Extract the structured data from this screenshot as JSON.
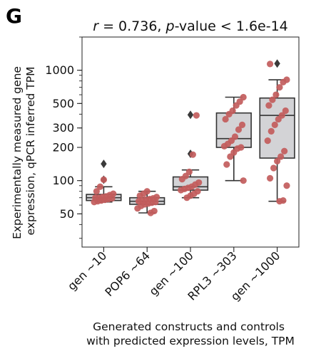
{
  "panel_label": "G",
  "chart_data": {
    "type": "box",
    "title_parts": [
      "r",
      " = 0.736, ",
      "p",
      "-value < 1.6e-14"
    ],
    "xlabel_lines": [
      "Generated constructs and controls",
      "with predicted expression levels, TPM"
    ],
    "ylabel_lines": [
      "Experimentally measured gene",
      "expression, qPCR inferred TPM"
    ],
    "yscale": "log",
    "ylim": [
      25,
      2000
    ],
    "yticks": [
      {
        "value": 50,
        "label": "50"
      },
      {
        "value": 100,
        "label": "100"
      },
      {
        "value": 200,
        "label": "200"
      },
      {
        "value": 300,
        "label": "300"
      },
      {
        "value": 500,
        "label": "500"
      },
      {
        "value": 1000,
        "label": "1000"
      }
    ],
    "categories": [
      "gen ~10",
      "POP6 ~64",
      "gen ~100",
      "RPL3 ~303",
      "gen ~1000"
    ],
    "boxes": [
      {
        "category": "gen ~10",
        "whisker_low": 64,
        "q1": 66,
        "median": 70,
        "q3": 75,
        "whisker_high": 88,
        "outliers": [
          102,
          142
        ],
        "points": [
          64,
          65,
          66,
          67,
          68,
          69,
          70,
          70,
          71,
          72,
          74,
          76,
          80,
          88,
          102
        ]
      },
      {
        "category": "POP6 ~64",
        "whisker_low": 51,
        "q1": 61,
        "median": 65,
        "q3": 70,
        "whisker_high": 80,
        "outliers": [],
        "points": [
          51,
          53,
          56,
          59,
          61,
          62,
          63,
          64,
          65,
          66,
          67,
          68,
          69,
          71,
          73,
          76,
          80
        ]
      },
      {
        "category": "gen ~100",
        "whisker_low": 70,
        "q1": 82,
        "median": 88,
        "q3": 108,
        "whisker_high": 125,
        "outliers": [
          175,
          395
        ],
        "points": [
          70,
          73,
          76,
          80,
          82,
          84,
          86,
          88,
          92,
          96,
          103,
          110,
          120,
          172,
          390
        ]
      },
      {
        "category": "RPL3 ~303",
        "whisker_low": 100,
        "q1": 200,
        "median": 240,
        "q3": 410,
        "whisker_high": 570,
        "outliers": [],
        "points": [
          100,
          140,
          165,
          180,
          195,
          200,
          205,
          215,
          230,
          250,
          290,
          320,
          360,
          400,
          430,
          480,
          520,
          570
        ]
      },
      {
        "category": "gen ~1000",
        "whisker_low": 65,
        "q1": 160,
        "median": 390,
        "q3": 560,
        "whisker_high": 820,
        "outliers": [
          1150
        ],
        "points": [
          65,
          66,
          90,
          105,
          130,
          150,
          165,
          185,
          230,
          280,
          320,
          360,
          390,
          430,
          480,
          540,
          600,
          700,
          780,
          820,
          1140
        ]
      }
    ],
    "colors": {
      "box_fill": "#d3d3d6",
      "box_edge": "#333333",
      "point": "#c25c5c",
      "outlier": "#3a3a3a"
    }
  }
}
